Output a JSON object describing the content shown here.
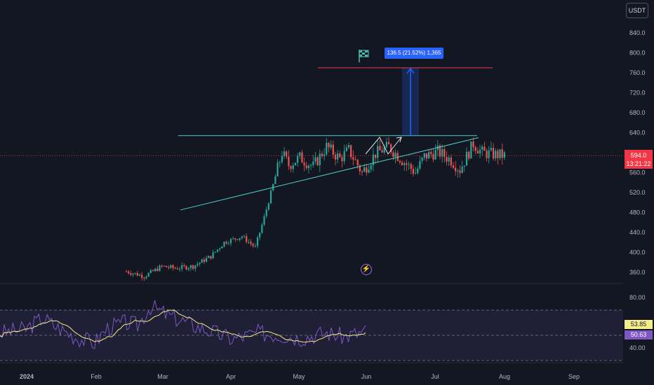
{
  "currency": "USDT",
  "last_price": "594.0",
  "countdown": "13:21:22",
  "rsi_value": "53.85",
  "rsi_ma_value": "50.63",
  "measure_label": "136.5 (21.52%) 1,365",
  "icons": {
    "flag": "flag-icon",
    "flash": "flash-icon"
  },
  "colors": {
    "up": "#26a69a",
    "down": "#ef5350",
    "trendline": "#4dd0c8",
    "target": "#f23645",
    "measure": "#2962ff",
    "rsi": "#7e57c2",
    "rsi_ma": "#f5ed8c"
  },
  "chart_data": {
    "type": "candlestick",
    "y_ticks": [
      "840.0",
      "800.0",
      "760.0",
      "720.0",
      "680.0",
      "640.0",
      "600.0",
      "560.0",
      "520.0",
      "480.0",
      "440.0",
      "400.0",
      "360.0"
    ],
    "y_tick_values": [
      840,
      800,
      760,
      720,
      680,
      640,
      600,
      560,
      520,
      480,
      440,
      400,
      360
    ],
    "x_ticks": [
      "2024",
      "Feb",
      "Mar",
      "Apr",
      "May",
      "Jun",
      "Jul",
      "Aug",
      "Sep"
    ],
    "ylim": [
      340,
      860
    ],
    "rsi_ticks": [
      "80.00",
      "40.00"
    ],
    "rsi_tick_values": [
      80,
      40
    ],
    "rsi_ylim": [
      30,
      90
    ],
    "rsi_bands": [
      70,
      50,
      30
    ],
    "annotations": {
      "resistance": 634,
      "target": 770,
      "measure_from": 634,
      "measure_to": 770,
      "support_start": [
        "Mar 12",
        485
      ],
      "support_end": [
        "Jun 28",
        630
      ]
    },
    "candles_summary": {
      "Jan": [
        365,
        345,
        370
      ],
      "Feb": [
        368,
        400,
        440
      ],
      "Mar": [
        480,
        630,
        560
      ],
      "Apr": [
        560,
        620,
        520
      ],
      "May": [
        540,
        620,
        590
      ],
      "Jun": [
        594
      ]
    }
  }
}
